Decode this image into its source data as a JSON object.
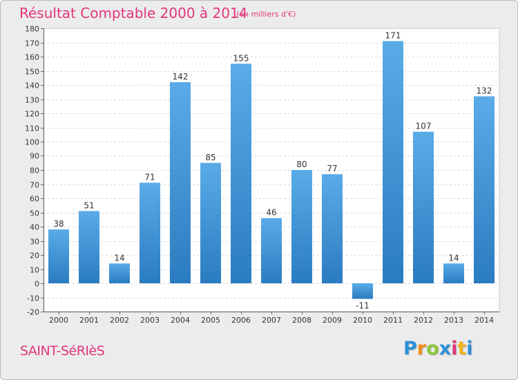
{
  "header": {
    "title": "Résultat Comptable 2000 à 2014",
    "subtitle": "(en milliers d'€)"
  },
  "footer": {
    "town": "SAINT-SéRIèS",
    "logo": {
      "letters": [
        "P",
        "r",
        "o",
        "x",
        "i",
        "t",
        "i"
      ],
      "colors": [
        "#2b8fd8",
        "#f28c1c",
        "#8cc63f",
        "#2b8fd8",
        "#e2367a",
        "#f2b21c",
        "#2b8fd8"
      ]
    }
  },
  "chart_data": {
    "type": "bar",
    "title": "Résultat Comptable 2000 à 2014",
    "subtitle": "(en milliers d'€)",
    "xlabel": "",
    "ylabel": "",
    "categories": [
      "2000",
      "2001",
      "2002",
      "2003",
      "2004",
      "2005",
      "2006",
      "2007",
      "2008",
      "2009",
      "2010",
      "2011",
      "2012",
      "2013",
      "2014"
    ],
    "values": [
      38,
      51,
      14,
      71,
      142,
      85,
      155,
      46,
      80,
      77,
      -11,
      171,
      107,
      14,
      132
    ],
    "labels": [
      "38",
      "51",
      "14",
      "71",
      "142",
      "85",
      "155",
      "46",
      "80",
      "77",
      "-11",
      "171",
      "107",
      "14",
      "132"
    ],
    "ylim": [
      -20,
      180
    ],
    "yticks": [
      -20,
      -10,
      0,
      10,
      20,
      30,
      40,
      50,
      60,
      70,
      80,
      90,
      100,
      110,
      120,
      130,
      140,
      150,
      160,
      170,
      180
    ],
    "grid": true,
    "legend": "none",
    "colors": {
      "bar_light": "#5aabe8",
      "bar_dark": "#2a7cc0",
      "plot_bg": "#ffffff",
      "grid": "#d8d8d8",
      "text": "#333333"
    }
  }
}
